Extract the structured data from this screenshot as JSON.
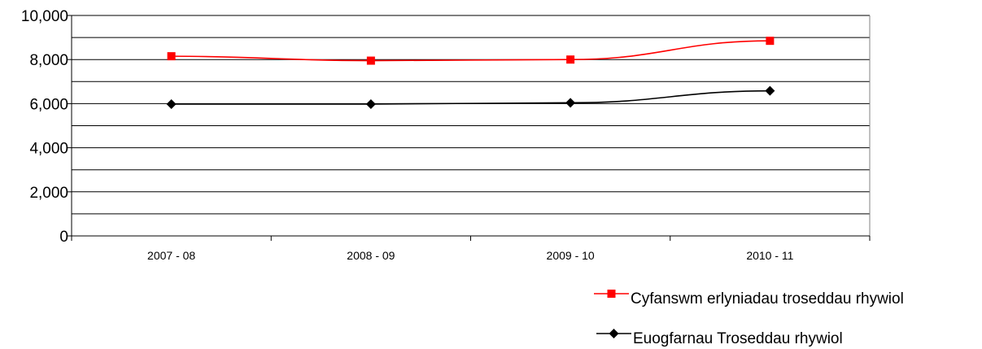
{
  "chart_data": {
    "type": "line",
    "title": "",
    "xlabel": "",
    "ylabel": "",
    "categories": [
      "2007 - 08",
      "2008 - 09",
      "2009 - 10",
      "2010 - 11"
    ],
    "ylim": [
      0,
      10000
    ],
    "yticks": [
      "0",
      "2,000",
      "4,000",
      "6,000",
      "8,000",
      "10,000"
    ],
    "yticks_values": [
      0,
      2000,
      4000,
      6000,
      8000,
      10000
    ],
    "minor_gridlines": [
      1000,
      3000,
      5000,
      7000,
      9000
    ],
    "grid": true,
    "legend_position": "bottom-right",
    "series": [
      {
        "name": "Cyfanswm erlyniadau troseddau rhywiol",
        "values": [
          8150,
          7950,
          8000,
          8850
        ],
        "color": "#ff0000",
        "marker": "square"
      },
      {
        "name": "Euogfarnau Troseddau rhywiol",
        "values": [
          5980,
          5980,
          6040,
          6580
        ],
        "color": "#000000",
        "marker": "diamond"
      }
    ]
  }
}
